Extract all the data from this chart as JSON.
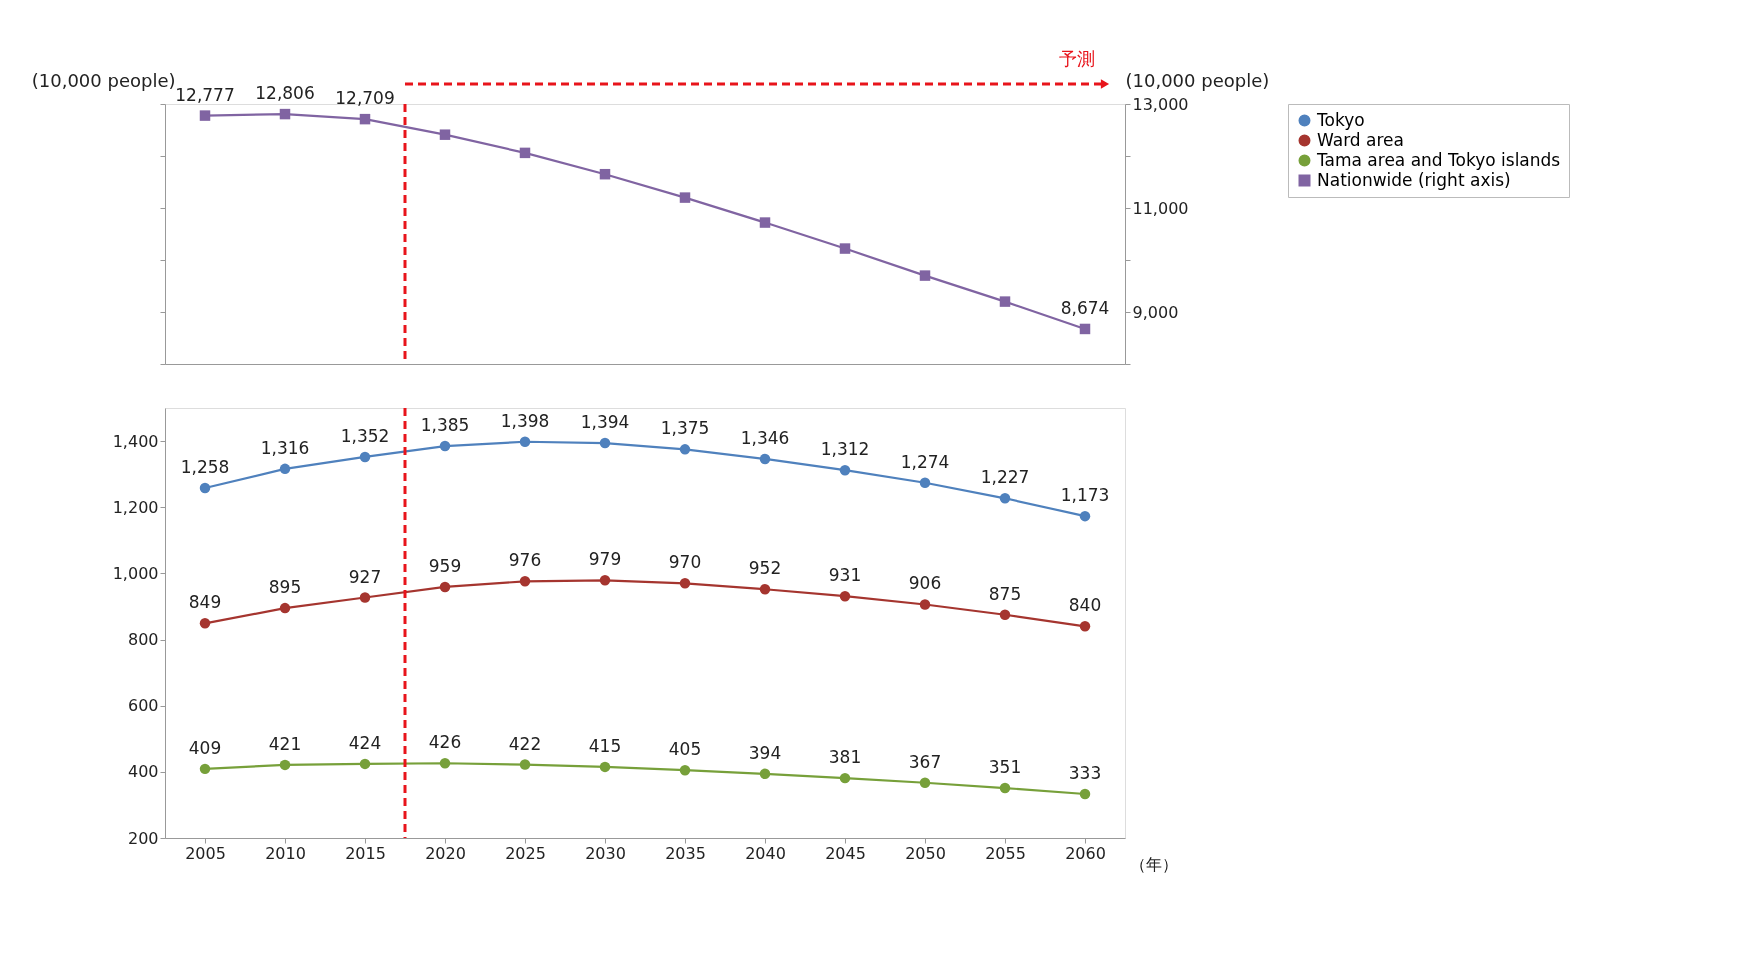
{
  "chart_data": [
    {
      "type": "line",
      "x": [
        2005,
        2010,
        2015,
        2020,
        2025,
        2030,
        2035,
        2040,
        2045,
        2050,
        2055,
        2060
      ],
      "xlim": [
        2002.5,
        2062.5
      ],
      "xticks": [
        2005,
        2010,
        2015,
        2020,
        2025,
        2030,
        2035,
        2040,
        2045,
        2050,
        2055,
        2060
      ],
      "tick_labels": false,
      "ylabel": "(10,000 people)",
      "y2label": "(10,000 people)",
      "y2lim": [
        8000,
        13000
      ],
      "y2ticks": [
        {
          "value": 8000,
          "label": null
        },
        {
          "value": 9000,
          "label": "9,000"
        },
        {
          "value": 10000,
          "label": null
        },
        {
          "value": 11000,
          "label": "11,000"
        },
        {
          "value": 12000,
          "label": null
        },
        {
          "value": 13000,
          "label": "13,000"
        }
      ],
      "marker": "square",
      "line_style": "solid",
      "legend": "right",
      "grid": false,
      "series": [
        {
          "name": "Nationwide (right axis)",
          "color": "#8064a2",
          "axis": "y2",
          "values": [
            12777,
            12806,
            12709,
            12410,
            12060,
            11650,
            11200,
            10720,
            10220,
            9700,
            9200,
            8674
          ],
          "value_labels": [
            "12,777",
            "12,806",
            "12,709",
            null,
            null,
            null,
            null,
            null,
            null,
            null,
            null,
            "8,674"
          ]
        }
      ],
      "ref_lines": [
        {
          "axis": "x",
          "value": 2017.5,
          "label": "予測",
          "color": "#e8141b",
          "line_style": "dashed"
        }
      ]
    },
    {
      "type": "line",
      "x": [
        2005,
        2010,
        2015,
        2020,
        2025,
        2030,
        2035,
        2040,
        2045,
        2050,
        2055,
        2060
      ],
      "xlim": [
        2002.5,
        2062.5
      ],
      "xticks": [
        2005,
        2010,
        2015,
        2020,
        2025,
        2030,
        2035,
        2040,
        2045,
        2050,
        2055,
        2060
      ],
      "xlabel": "（年）",
      "ylim": [
        200,
        1500
      ],
      "yticks": [
        200,
        400,
        600,
        800,
        {
          "value": 1000,
          "label": "1,000"
        },
        {
          "value": 1200,
          "label": "1,200"
        },
        {
          "value": 1400,
          "label": "1,400"
        }
      ],
      "marker": "circle",
      "line_style": "solid",
      "legend": "right",
      "grid": false,
      "series": [
        {
          "name": "Tokyo",
          "color": "#4f81bd",
          "values": [
            1258,
            1316,
            1352,
            1385,
            1398,
            1394,
            1375,
            1346,
            1312,
            1274,
            1227,
            1173
          ],
          "value_labels": [
            "1,258",
            "1,316",
            "1,352",
            "1,385",
            "1,398",
            "1,394",
            "1,375",
            "1,346",
            "1,312",
            "1,274",
            "1,227",
            "1,173"
          ]
        },
        {
          "name": "Ward area",
          "color": "#a5352f",
          "values": [
            849,
            895,
            927,
            959,
            976,
            979,
            970,
            952,
            931,
            906,
            875,
            840
          ],
          "value_labels": [
            "849",
            "895",
            "927",
            "959",
            "976",
            "979",
            "970",
            "952",
            "931",
            "906",
            "875",
            "840"
          ]
        },
        {
          "name": "Tama area and Tokyo islands",
          "color": "#77a03a",
          "values": [
            409,
            421,
            424,
            426,
            422,
            415,
            405,
            394,
            381,
            367,
            351,
            333
          ],
          "value_labels": [
            "409",
            "421",
            "424",
            "426",
            "422",
            "415",
            "405",
            "394",
            "381",
            "367",
            "351",
            "333"
          ]
        }
      ],
      "ref_lines": [
        {
          "axis": "x",
          "value": 2017.5,
          "color": "#e8141b",
          "line_style": "dashed"
        }
      ]
    }
  ]
}
